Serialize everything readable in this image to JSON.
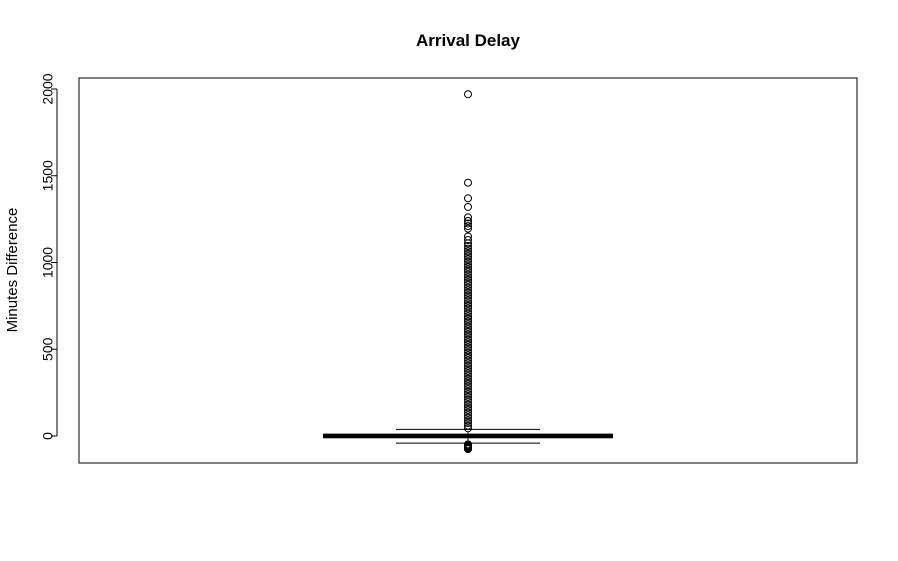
{
  "chart_data": {
    "type": "boxplot",
    "title": "Arrival Delay",
    "xlabel": "",
    "ylabel": "Minutes Difference",
    "ylim": [
      -80,
      2050
    ],
    "yticks": [
      0,
      500,
      1000,
      1500,
      2000
    ],
    "ytick_labels": [
      "0",
      "500",
      "1000",
      "1500",
      "2000"
    ],
    "grid": false,
    "legend": "none",
    "box": {
      "lower_whisker": -41,
      "q1": -7,
      "median": -1,
      "q3": 8,
      "upper_whisker": 38
    },
    "outliers": [
      1970,
      1460,
      1370,
      1320,
      1260,
      1240,
      1225,
      1210,
      1195,
      1150,
      1130,
      1110,
      1095,
      1080,
      1065,
      1050,
      1035,
      1020,
      1005,
      990,
      975,
      960,
      945,
      930,
      915,
      900,
      885,
      870,
      855,
      840,
      825,
      810,
      795,
      780,
      765,
      750,
      735,
      720,
      705,
      690,
      675,
      660,
      645,
      630,
      615,
      600,
      585,
      570,
      555,
      540,
      525,
      510,
      495,
      480,
      465,
      450,
      435,
      420,
      405,
      390,
      375,
      360,
      345,
      330,
      315,
      300,
      285,
      270,
      255,
      240,
      225,
      210,
      195,
      180,
      165,
      150,
      135,
      120,
      105,
      90,
      75,
      60,
      45,
      -48,
      -53,
      -58,
      -63,
      -68,
      -72,
      -76
    ],
    "colors": {
      "box_stroke": "#000000",
      "median": "#000000",
      "outlier": "#000000",
      "background": "#ffffff"
    }
  }
}
